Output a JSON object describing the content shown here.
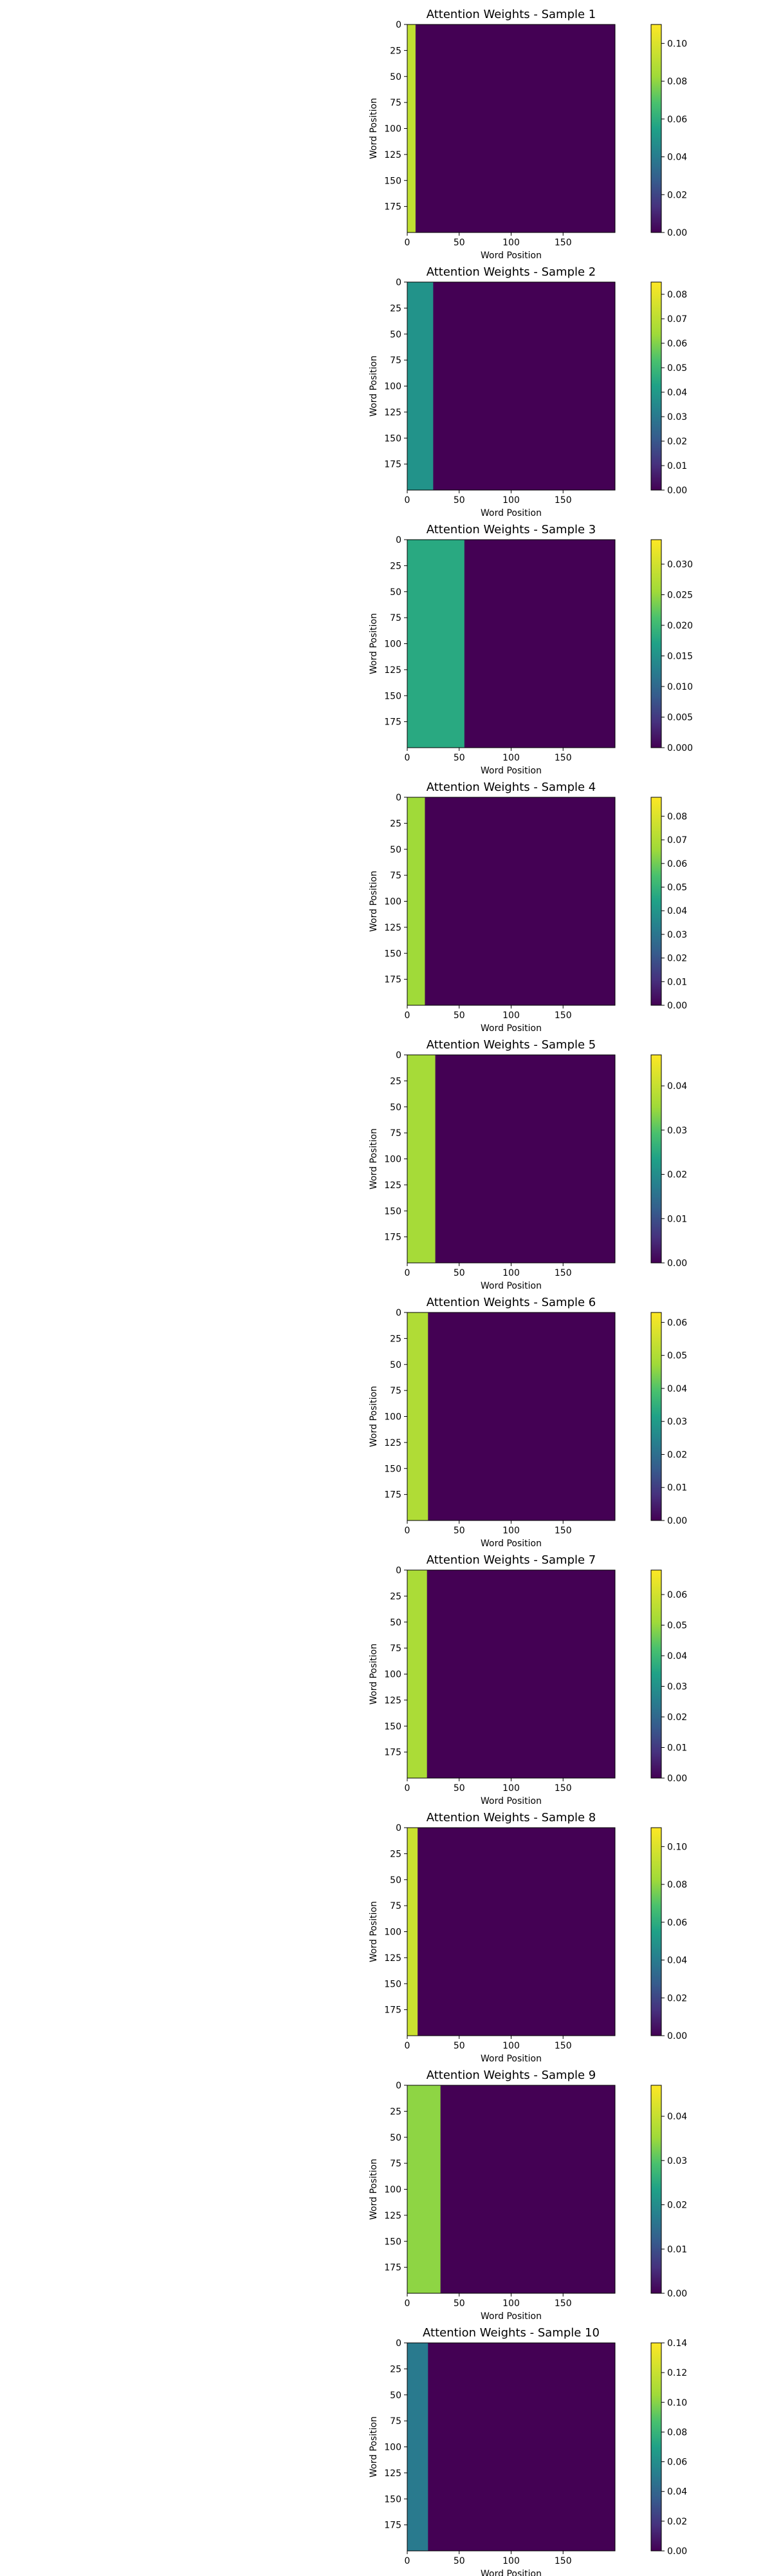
{
  "chart_data": [
    {
      "type": "heatmap",
      "title": "Attention Weights - Sample 1",
      "xlabel": "Word Position",
      "ylabel": "Word Position",
      "xlim": [
        0,
        200
      ],
      "ylim": [
        200,
        0
      ],
      "xticks": [
        0,
        50,
        100,
        150
      ],
      "yticks": [
        0,
        25,
        50,
        75,
        100,
        125,
        150,
        175
      ],
      "colorbar": {
        "min": 0,
        "max": 0.11,
        "ticks": [
          "0.00",
          "0.02",
          "0.04",
          "0.06",
          "0.08",
          "0.10"
        ]
      },
      "seq_len": 8,
      "band_value": 0.092,
      "background_value": 0
    },
    {
      "type": "heatmap",
      "title": "Attention Weights - Sample 2",
      "xlabel": "Word Position",
      "ylabel": "Word Position",
      "xlim": [
        0,
        200
      ],
      "ylim": [
        200,
        0
      ],
      "xticks": [
        0,
        50,
        100,
        150
      ],
      "yticks": [
        0,
        25,
        50,
        75,
        100,
        125,
        150,
        175
      ],
      "colorbar": {
        "min": 0,
        "max": 0.085,
        "ticks": [
          "0.00",
          "0.01",
          "0.02",
          "0.03",
          "0.04",
          "0.05",
          "0.06",
          "0.07",
          "0.08"
        ]
      },
      "seq_len": 25,
      "band_value": 0.038,
      "background_value": 0
    },
    {
      "type": "heatmap",
      "title": "Attention Weights - Sample 3",
      "xlabel": "Word Position",
      "ylabel": "Word Position",
      "xlim": [
        0,
        200
      ],
      "ylim": [
        200,
        0
      ],
      "xticks": [
        0,
        50,
        100,
        150
      ],
      "yticks": [
        0,
        25,
        50,
        75,
        100,
        125,
        150,
        175
      ],
      "colorbar": {
        "min": 0,
        "max": 0.034,
        "ticks": [
          "0.000",
          "0.005",
          "0.010",
          "0.015",
          "0.020",
          "0.025",
          "0.030"
        ]
      },
      "seq_len": 55,
      "band_value": 0.018,
      "background_value": 0
    },
    {
      "type": "heatmap",
      "title": "Attention Weights - Sample 4",
      "xlabel": "Word Position",
      "ylabel": "Word Position",
      "xlim": [
        0,
        200
      ],
      "ylim": [
        200,
        0
      ],
      "xticks": [
        0,
        50,
        100,
        150
      ],
      "yticks": [
        0,
        25,
        50,
        75,
        100,
        125,
        150,
        175
      ],
      "colorbar": {
        "min": 0,
        "max": 0.088,
        "ticks": [
          "0.00",
          "0.01",
          "0.02",
          "0.03",
          "0.04",
          "0.05",
          "0.06",
          "0.07",
          "0.08"
        ]
      },
      "seq_len": 17,
      "band_value": 0.066,
      "background_value": 0
    },
    {
      "type": "heatmap",
      "title": "Attention Weights - Sample 5",
      "xlabel": "Word Position",
      "ylabel": "Word Position",
      "xlim": [
        0,
        200
      ],
      "ylim": [
        200,
        0
      ],
      "xticks": [
        0,
        50,
        100,
        150
      ],
      "yticks": [
        0,
        25,
        50,
        75,
        100,
        125,
        150,
        175
      ],
      "colorbar": {
        "min": 0,
        "max": 0.047,
        "ticks": [
          "0.00",
          "0.01",
          "0.02",
          "0.03",
          "0.04"
        ]
      },
      "seq_len": 27,
      "band_value": 0.036,
      "background_value": 0
    },
    {
      "type": "heatmap",
      "title": "Attention Weights - Sample 6",
      "xlabel": "Word Position",
      "ylabel": "Word Position",
      "xlim": [
        0,
        200
      ],
      "ylim": [
        200,
        0
      ],
      "xticks": [
        0,
        50,
        100,
        150
      ],
      "yticks": [
        0,
        25,
        50,
        75,
        100,
        125,
        150,
        175
      ],
      "colorbar": {
        "min": 0,
        "max": 0.063,
        "ticks": [
          "0.00",
          "0.01",
          "0.02",
          "0.03",
          "0.04",
          "0.05",
          "0.06"
        ]
      },
      "seq_len": 20,
      "band_value": 0.05,
      "background_value": 0
    },
    {
      "type": "heatmap",
      "title": "Attention Weights - Sample 7",
      "xlabel": "Word Position",
      "ylabel": "Word Position",
      "xlim": [
        0,
        200
      ],
      "ylim": [
        200,
        0
      ],
      "xticks": [
        0,
        50,
        100,
        150
      ],
      "yticks": [
        0,
        25,
        50,
        75,
        100,
        125,
        150,
        175
      ],
      "colorbar": {
        "min": 0,
        "max": 0.068,
        "ticks": [
          "0.00",
          "0.01",
          "0.02",
          "0.03",
          "0.04",
          "0.05",
          "0.06"
        ]
      },
      "seq_len": 19,
      "band_value": 0.053,
      "background_value": 0
    },
    {
      "type": "heatmap",
      "title": "Attention Weights - Sample 8",
      "xlabel": "Word Position",
      "ylabel": "Word Position",
      "xlim": [
        0,
        200
      ],
      "ylim": [
        200,
        0
      ],
      "xticks": [
        0,
        50,
        100,
        150
      ],
      "yticks": [
        0,
        25,
        50,
        75,
        100,
        125,
        150,
        175
      ],
      "colorbar": {
        "min": 0,
        "max": 0.11,
        "ticks": [
          "0.00",
          "0.02",
          "0.04",
          "0.06",
          "0.08",
          "0.10"
        ]
      },
      "seq_len": 10,
      "band_value": 0.095,
      "background_value": 0
    },
    {
      "type": "heatmap",
      "title": "Attention Weights - Sample 9",
      "xlabel": "Word Position",
      "ylabel": "Word Position",
      "xlim": [
        0,
        200
      ],
      "ylim": [
        200,
        0
      ],
      "xticks": [
        0,
        50,
        100,
        150
      ],
      "yticks": [
        0,
        25,
        50,
        75,
        100,
        125,
        150,
        175
      ],
      "colorbar": {
        "min": 0,
        "max": 0.047,
        "ticks": [
          "0.00",
          "0.01",
          "0.02",
          "0.03",
          "0.04"
        ]
      },
      "seq_len": 32,
      "band_value": 0.034,
      "background_value": 0
    },
    {
      "type": "heatmap",
      "title": "Attention Weights - Sample 10",
      "xlabel": "Word Position",
      "ylabel": "Word Position",
      "xlim": [
        0,
        200
      ],
      "ylim": [
        200,
        0
      ],
      "xticks": [
        0,
        50,
        100,
        150
      ],
      "yticks": [
        0,
        25,
        50,
        75,
        100,
        125,
        150,
        175
      ],
      "colorbar": {
        "min": 0,
        "max": 0.14,
        "ticks": [
          "0.00",
          "0.02",
          "0.04",
          "0.06",
          "0.08",
          "0.10",
          "0.12",
          "0.14"
        ]
      },
      "seq_len": 20,
      "band_value": 0.05,
      "background_value": 0
    }
  ]
}
